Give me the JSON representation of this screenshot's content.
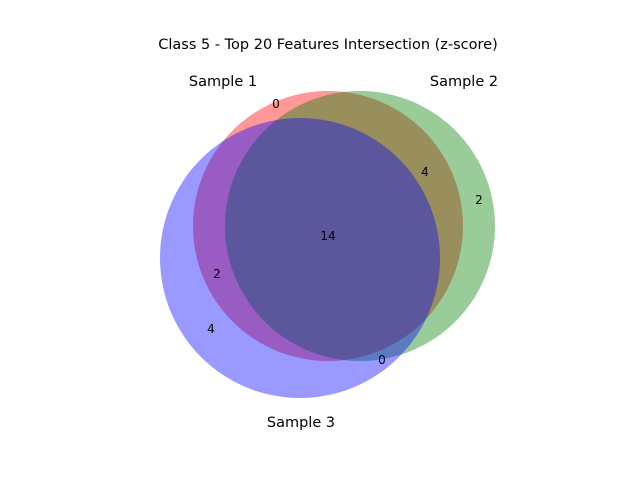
{
  "title": "Class 5 - Top 20 Features Intersection (z-score)",
  "sets": [
    {
      "name": "Sample 1",
      "color": "#ff0000"
    },
    {
      "name": "Sample 2",
      "color": "#008000"
    },
    {
      "name": "Sample 3",
      "color": "#0000ff"
    }
  ],
  "regions": {
    "s1_only": "0",
    "s2_only": "2",
    "s3_only": "4",
    "s1_s2": "4",
    "s1_s3": "2",
    "s2_s3": "0",
    "s1_s2_s3": "14"
  }
}
